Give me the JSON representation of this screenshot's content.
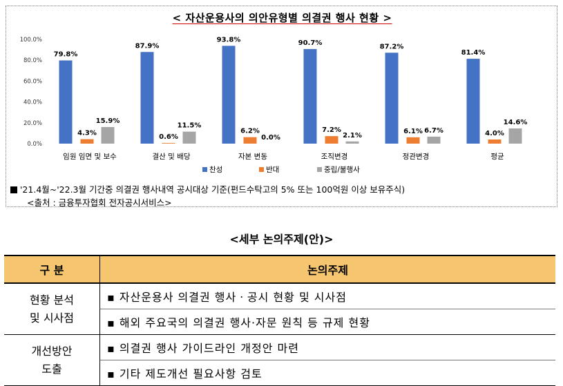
{
  "chart_title": "< 자산운용사의 의안유형별 의결권 행사 현황 >",
  "chart_data": {
    "type": "bar",
    "categories": [
      "임원 임면 및 보수",
      "결산 및 배당",
      "자본 변동",
      "조직변경",
      "정관변경",
      "평균"
    ],
    "series": [
      {
        "name": "찬성",
        "color": "#4472c4",
        "values": [
          79.8,
          87.9,
          93.8,
          90.7,
          87.2,
          81.4
        ],
        "labels": [
          "79.8%",
          "87.9%",
          "93.8%",
          "90.7%",
          "87.2%",
          "81.4%"
        ]
      },
      {
        "name": "반대",
        "color": "#ed7d31",
        "values": [
          4.3,
          0.6,
          6.2,
          7.2,
          6.1,
          4.0
        ],
        "labels": [
          "4.3%",
          "0.6%",
          "6.2%",
          "7.2%",
          "6.1%",
          "4.0%"
        ]
      },
      {
        "name": "중립/불행사",
        "color": "#a5a5a5",
        "values": [
          15.9,
          11.5,
          0.0,
          2.1,
          6.7,
          14.6
        ],
        "labels": [
          "15.9%",
          "11.5%",
          "0.0%",
          "2.1%",
          "6.7%",
          "14.6%"
        ]
      }
    ],
    "yticks": [
      "0.0%",
      "20.0%",
      "40.0%",
      "60.0%",
      "80.0%",
      "100.0%"
    ],
    "ylim": [
      0,
      100
    ],
    "legend": "bottom",
    "grid": false
  },
  "note_period": "'21.4월~'22.3월 기간중 의결권 행사내역 공시대상 기준(펀드수탁고의 5% 또는 100억원 이상 보유주식)",
  "note_source": "<출처 : 금융투자협회 전자공시서비스>",
  "section_title": "<세부 논의주제(안)>",
  "table": {
    "headers": [
      "구 분",
      "논의주제"
    ],
    "groups": [
      {
        "category": "현황 분석\n및 시사점",
        "items": [
          "자산운용사 의결권 행사ㆍ공시 현황 및 시사점",
          "해외 주요국의 의결권 행사·자문 원칙 등 규제 현황"
        ]
      },
      {
        "category": "개선방안\n도출",
        "items": [
          "의결권 행사 가이드라인 개정안 마련",
          "기타 제도개선 필요사항 검토"
        ]
      }
    ],
    "bullet": "▪"
  }
}
